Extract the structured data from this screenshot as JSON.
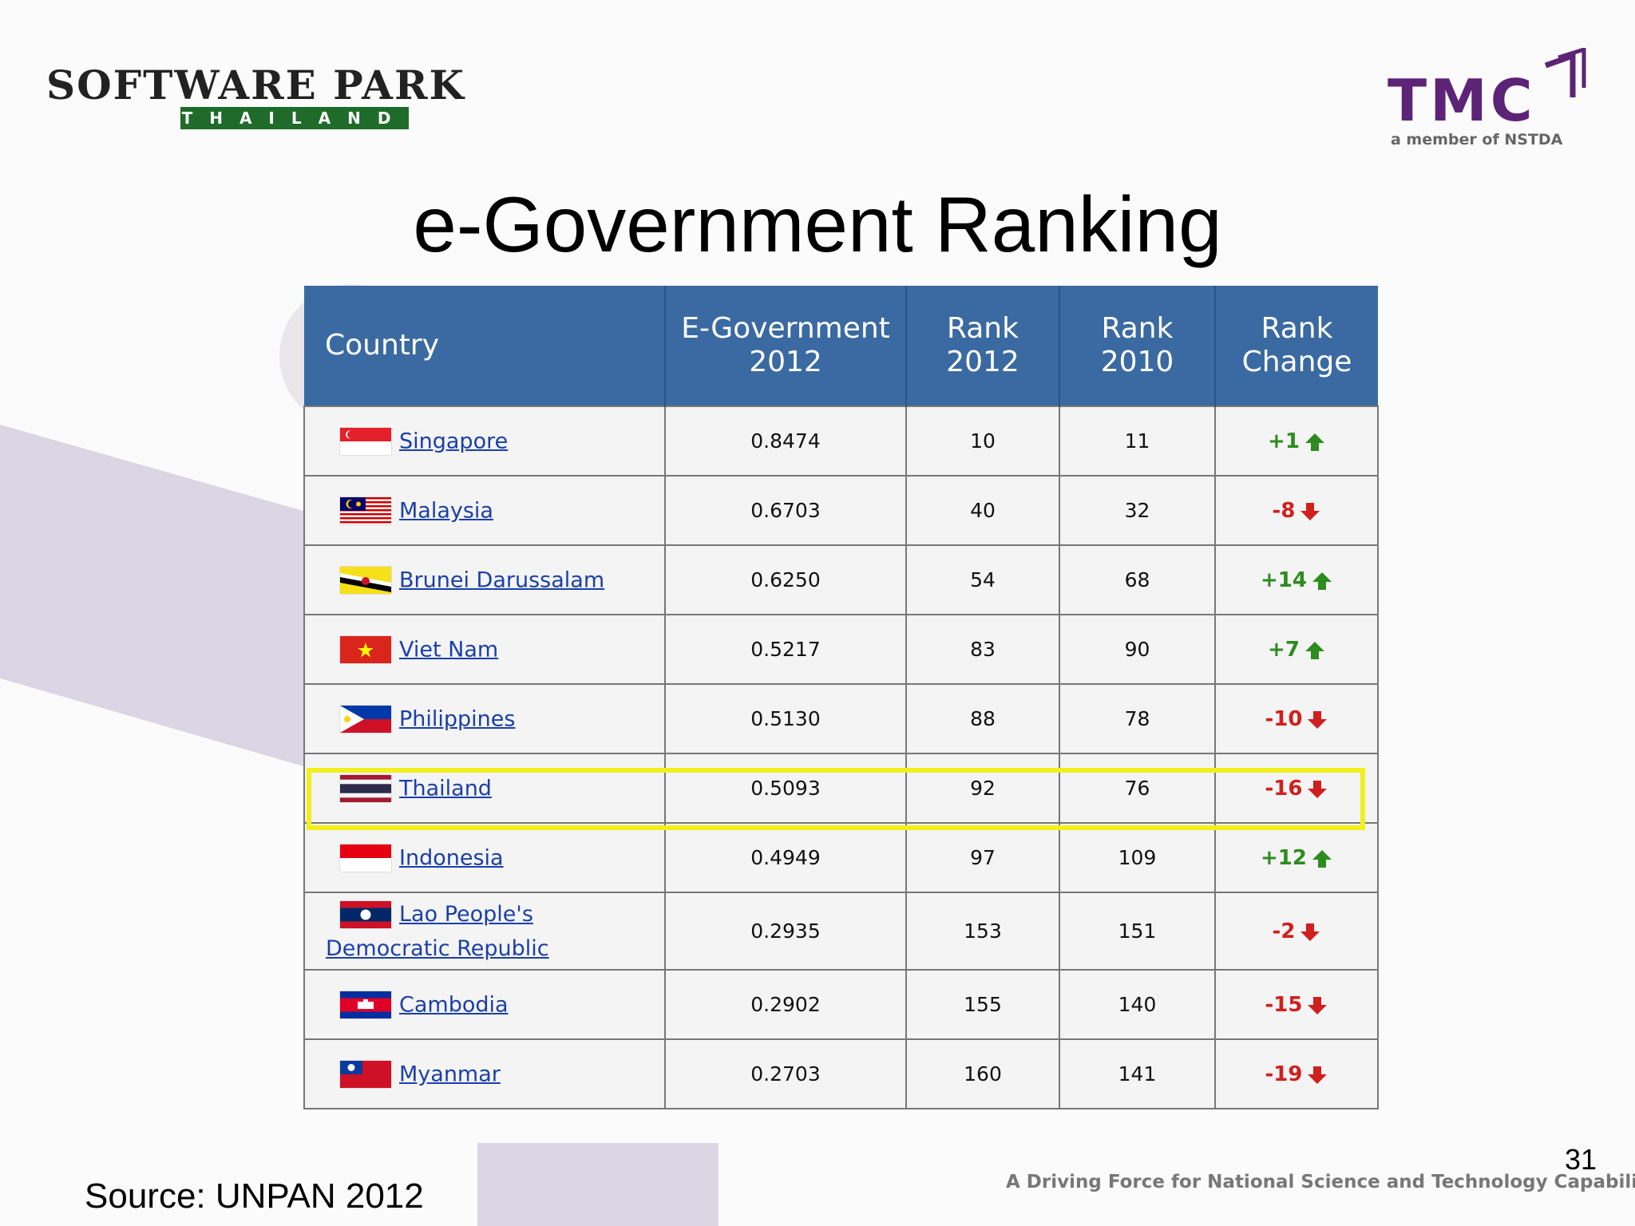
{
  "logos": {
    "software_park": {
      "top": "SOFTWARE PARK",
      "bottom": "THAILAND"
    },
    "tmc": {
      "name": "TMC",
      "subtitle": "a member of NSTDA"
    }
  },
  "title": "e-Government Ranking",
  "table": {
    "headers": {
      "country": "Country",
      "egov": "E-Government 2012",
      "rank2012": "Rank 2012",
      "rank2010": "Rank 2010",
      "change": "Rank Change"
    },
    "rows": [
      {
        "country": "Singapore",
        "egov": "0.8474",
        "rank2012": "10",
        "rank2010": "11",
        "change": "+1",
        "direction": "up",
        "flag": "singapore"
      },
      {
        "country": "Malaysia",
        "egov": "0.6703",
        "rank2012": "40",
        "rank2010": "32",
        "change": "-8",
        "direction": "down",
        "flag": "malaysia"
      },
      {
        "country": "Brunei Darussalam",
        "egov": "0.6250",
        "rank2012": "54",
        "rank2010": "68",
        "change": "+14",
        "direction": "up",
        "flag": "brunei"
      },
      {
        "country": "Viet Nam",
        "egov": "0.5217",
        "rank2012": "83",
        "rank2010": "90",
        "change": "+7",
        "direction": "up",
        "flag": "vietnam"
      },
      {
        "country": "Philippines",
        "egov": "0.5130",
        "rank2012": "88",
        "rank2010": "78",
        "change": "-10",
        "direction": "down",
        "flag": "philippines"
      },
      {
        "country": "Thailand",
        "egov": "0.5093",
        "rank2012": "92",
        "rank2010": "76",
        "change": "-16",
        "direction": "down",
        "flag": "thailand"
      },
      {
        "country": "Indonesia",
        "egov": "0.4949",
        "rank2012": "97",
        "rank2010": "109",
        "change": "+12",
        "direction": "up",
        "flag": "indonesia"
      },
      {
        "country_line1": "Lao People's",
        "country_line2": "Democratic Republic",
        "egov": "0.2935",
        "rank2012": "153",
        "rank2010": "151",
        "change": "-2",
        "direction": "down",
        "flag": "laos"
      },
      {
        "country": "Cambodia",
        "egov": "0.2902",
        "rank2012": "155",
        "rank2010": "140",
        "change": "-15",
        "direction": "down",
        "flag": "cambodia"
      },
      {
        "country": "Myanmar",
        "egov": "0.2703",
        "rank2012": "160",
        "rank2010": "141",
        "change": "-19",
        "direction": "down",
        "flag": "myanmar"
      }
    ]
  },
  "slide_number": "31",
  "source": "Source:  UNPAN 2012",
  "tagline": "A Driving Force for National Science and Technology Capability",
  "colors": {
    "header_bg": "#3a6aa1",
    "highlight": "#f2ef1c",
    "up": "#2d8c1e",
    "down": "#d0201e",
    "tmc_purple": "#5c2377"
  }
}
